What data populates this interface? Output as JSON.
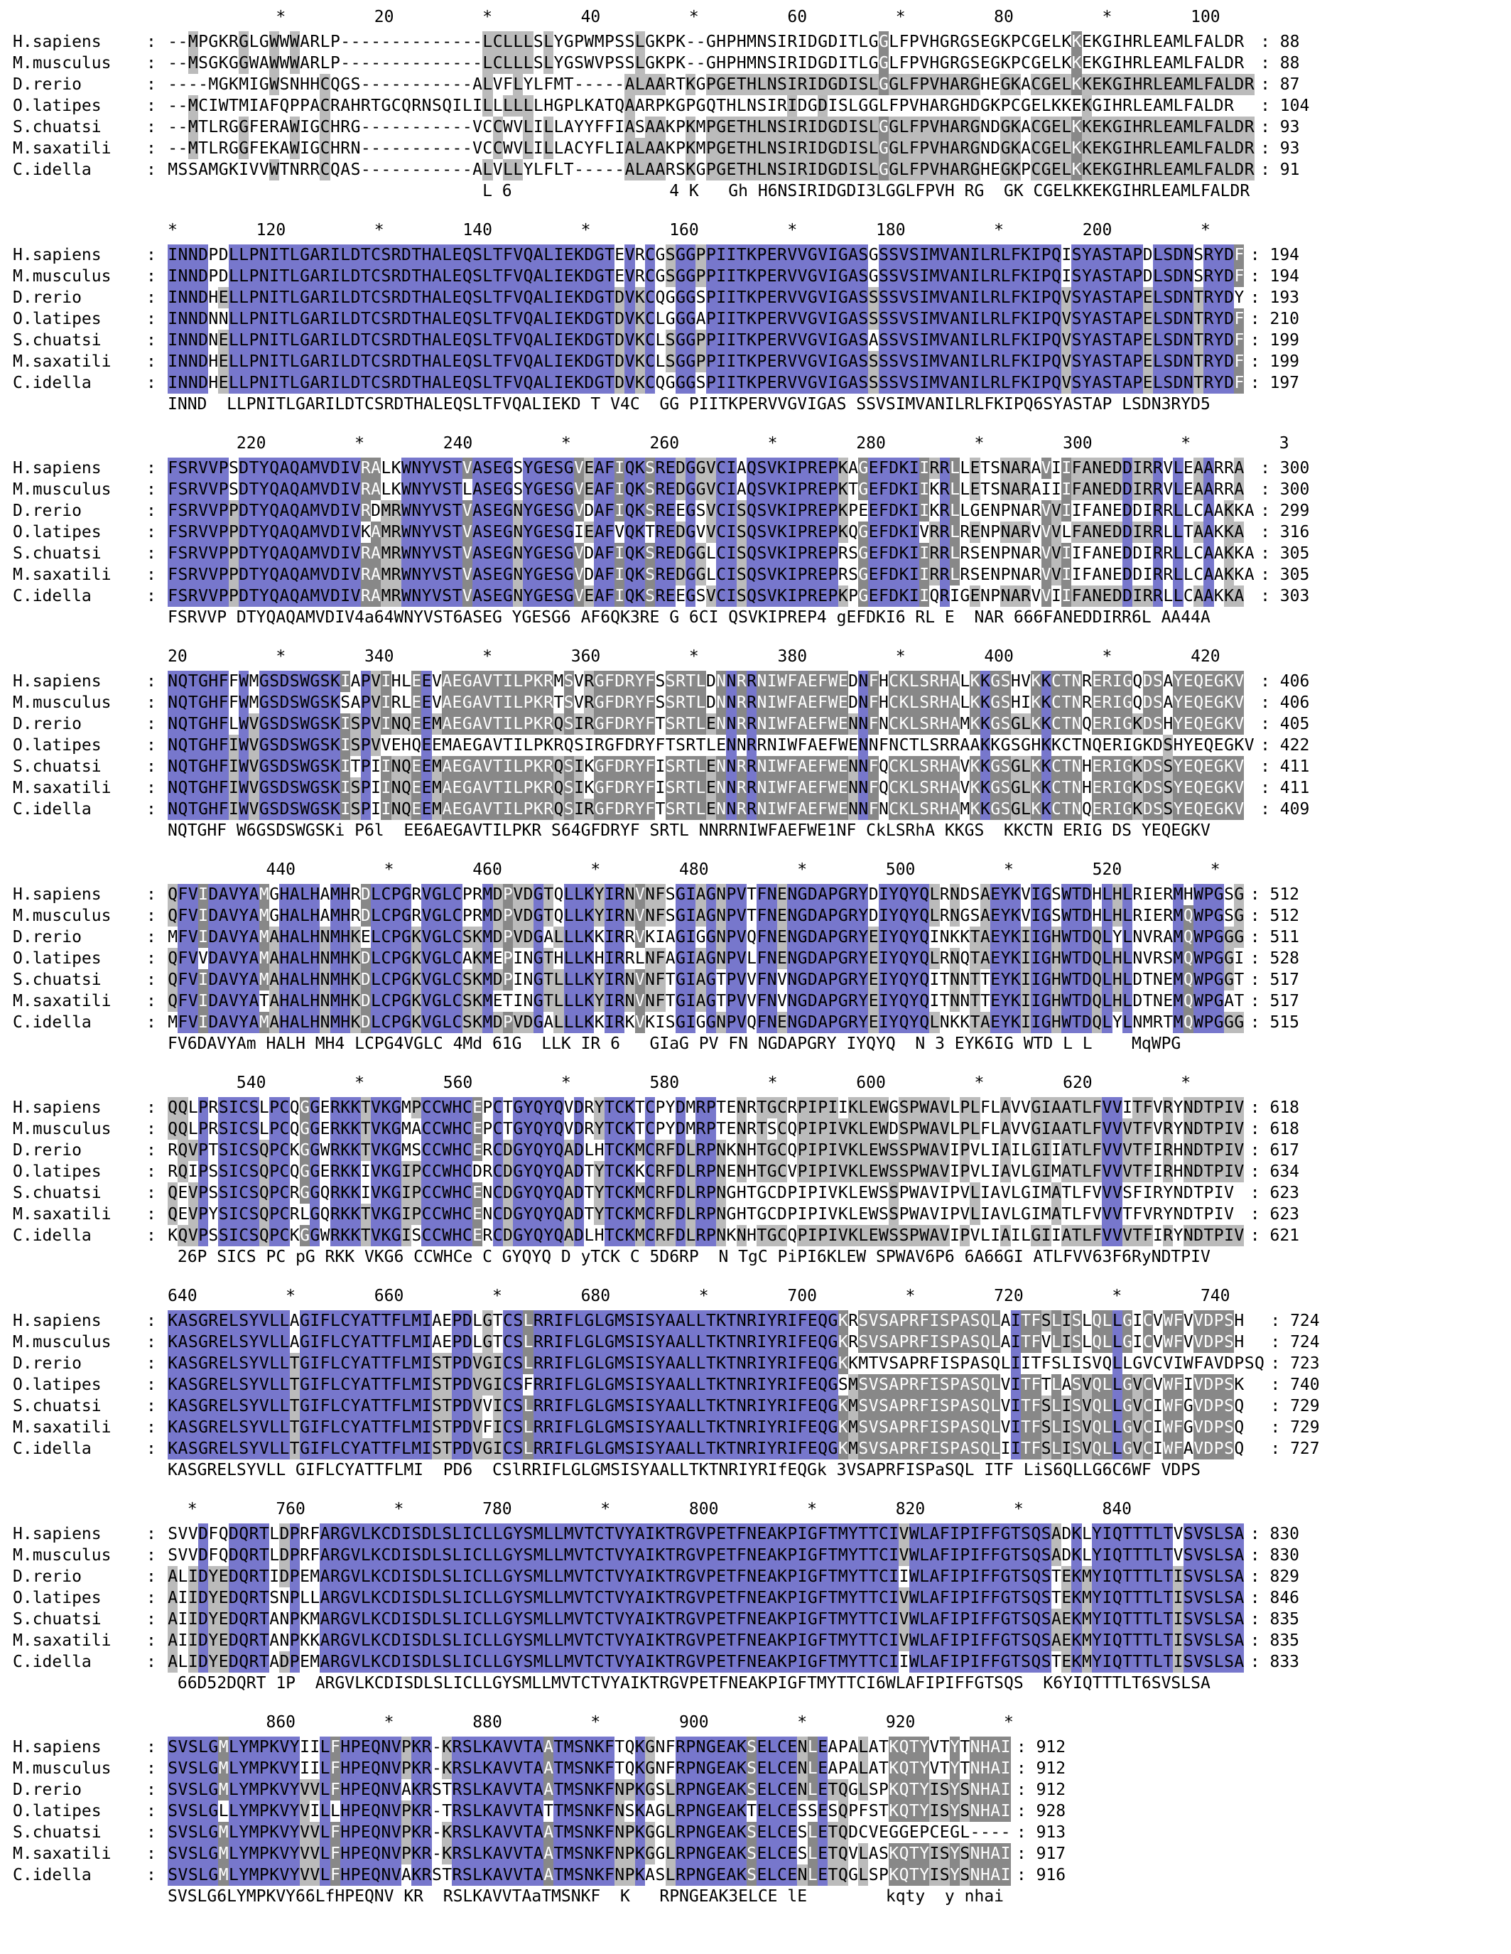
{
  "alignment": {
    "species": [
      "H.sapiens",
      "M.musculus",
      "D.rerio",
      "O.latipes",
      "S.chuatsi",
      "M.saxatili",
      "C.idella"
    ],
    "palette": {
      "identical": "#7777cc",
      "high": "#888888",
      "medium": "#bbbbbb"
    },
    "blocks": [
      {
        "ruler": "           *         20         *         40         *         60         *         80         *        100",
        "rows": [
          {
            "name": "H.sapiens",
            "seq": "--MPGKRGLGWWWARLP--------------LCLLLSLYGPWMPSSLGKPK--GHPHMNSIRIDGDITLGGLFPVHGRGSEGKPCGELKKEKGIHRLEAMLFALDR",
            "end": "88"
          },
          {
            "name": "M.musculus",
            "seq": "--MSGKGGWAWWWARLP--------------LCLLLSLYGSWVPSSLGKPK--GHPHMNSIRIDGDITLGGLFPVHGRGSEGKPCGELKKEKGIHRLEAMLFALDR",
            "end": "88"
          },
          {
            "name": "D.rerio",
            "seq": "----MGKMIGWSNHHCQGS-----------ALVFLYLFMT-----ALAARTKGPGETHLNSIRIDGDISLGGLFPVHARGHEGKACGELKKEKGIHRLEAMLFALDR",
            "end": "87"
          },
          {
            "name": "O.latipes",
            "seq": "--MCIWTMIAFQPPACRAHRTGCQRNSQILILLLLLLHGPLKATQAARPKGPGQTHLNSIRIDGDISLGGLFPVHARGHDGKPCGELKKEKGIHRLEAMLFALDR",
            "end": "104"
          },
          {
            "name": "S.chuatsi",
            "seq": "--MTLRGGFERAWIGCHRG-----------VCCWVLILLAYYFFIASAAKPKMPGETHLNSIRIDGDISLGGLFPVHARGNDGKACGELKKEKGIHRLEAMLFALDR",
            "end": "93"
          },
          {
            "name": "M.saxatili",
            "seq": "--MTLRGGFEKAWIGCHRN-----------VCCWVLILLACYFLIALAAKPKMPGETHLNSIRIDGDISLGGLFPVHARGNDGKACGELKKEKGIHRLEAMLFALDR",
            "end": "93"
          },
          {
            "name": "C.idella",
            "seq": "MSSAMGKIVVWTNRRCQAS-----------ALVLLYLFLT-----ALAARSKGPGETHLNSIRIDGDISLGGLFPVHARGHEGKPCGELKKEKGIHRLEAMLFALDR",
            "end": "91"
          }
        ],
        "consensus": "                                L 6                4 K   Gh H6NSIRIDGDI3LGGLFPVH RG  GK CGELKKEKGIHRLEAMLFALDR"
      },
      {
        "ruler": "*        120         *        140         *        160         *        180         *        200         *",
        "rows": [
          {
            "name": "H.sapiens",
            "seq": "INNDPDLLPNITLGARILDTCSRDTHALEQSLTFVQALIEKDGTEVRCGSGGPPIITKPERVVGVIGASGSSVSIMVANILRLFKIPQISYASTAPDLSDNSRYDF",
            "end": "194"
          },
          {
            "name": "M.musculus",
            "seq": "INNDPDLLPNITLGARILDTCSRDTHALEQSLTFVQALIEKDGTEVRCGSGGPPIITKPERVVGVIGASGSSVSIMVANILRLFKIPQISYASTAPDLSDNSRYDF",
            "end": "194"
          },
          {
            "name": "D.rerio",
            "seq": "INNDHELLPNITLGARILDTCSRDTHALEQSLTFVQALIEKDGTDVKCQGGGSPIITKPERVVGVIGASSSSVSIMVANILRLFKIPQVSYASTAPELSDNTRYDY",
            "end": "193"
          },
          {
            "name": "O.latipes",
            "seq": "INNDNNLLPNITLGARILDTCSRDTHALEQSLTFVQALIEKDGTDVKCLGGGAPIITKPERVVGVIGASSSSVSIMVANILRLFKIPQVSYASTAPELSDNTRYDF",
            "end": "210"
          },
          {
            "name": "S.chuatsi",
            "seq": "INNDNELLPNITLGARILDTCSRDTHALEQSLTFVQALIEKDGTDVKCLSGGPPIITKPERVVGVIGASASSVSIMVANILRLFKIPQVSYASTAPELSDNTRYDF",
            "end": "199"
          },
          {
            "name": "M.saxatili",
            "seq": "INNDHELLPNITLGARILDTCSRDTHALEQSLTFVQALIEKDGTDVKCLSGGPPIITKPERVVGVIGASSSSVSIMVANILRLFKIPQVSYASTAPELSDNTRYDF",
            "end": "199"
          },
          {
            "name": "C.idella",
            "seq": "INNDHELLPNITLGARILDTCSRDTHALEQSLTFVQALIEKDGTDVKCQGGGSPIITKPERVVGVIGASSSSVSIMVANILRLFKIPQVSYASTAPELSDNTRYDF",
            "end": "197"
          }
        ],
        "consensus": "INND  LLPNITLGARILDTCSRDTHALEQSLTFVQALIEKD T V4C  GG PIITKPERVVGVIGAS SSVSIMVANILRLFKIPQ6SYASTAP LSDN3RYD5"
      },
      {
        "ruler": "       220         *        240         *        260         *        280         *        300         *         3",
        "rows": [
          {
            "name": "H.sapiens",
            "seq": "FSRVVPSDTYQAQAMVDIVRALKWNYVSTVASEGSYGESGVEAFIQKSREDGGVCIAQSVKIPREPKAGEFDKIIRRLLETSNARAVIIFANEDDIRRVLEAARRA",
            "end": "300"
          },
          {
            "name": "M.musculus",
            "seq": "FSRVVPSDTYQAQAMVDIVRALKWNYVSTLASEGSYGESGVEAFIQKSREDGGVCIAQSVKIPREPKTGEFDKIIKRLLETSNARAIIIFANEDDIRRVLEAARRA",
            "end": "300"
          },
          {
            "name": "D.rerio",
            "seq": "FSRVVPPDTYQAQAMVDIVRDMRWNYVSTVASEGNYGESGVDAFIQKSREEGSVCISQSVKIPREPKPEEFDKIIKRLLGENPNARVVIIFANEDDIRRLLCAAKKA",
            "end": "299"
          },
          {
            "name": "O.latipes",
            "seq": "FSRVVPPDTYQAQAMVDIVKAMRWNYVSTVASEGNYGESGIEAFVQKTREDGVVCISQSVKIPREPKQGEFDKIVRRLRENPNARVVVLFANEDDIRRLLTAAKKA",
            "end": "316"
          },
          {
            "name": "S.chuatsi",
            "seq": "FSRVVPPDTYQAQAMVDIVRAMRWNYVSTVASEGNYGESGVDAFIQKSREDGGLCISQSVKIPREPRSGEFDKIIRRLRSENPNARVVIIFANEDDIRRLLCAAKKA",
            "end": "305"
          },
          {
            "name": "M.saxatili",
            "seq": "FSRVVPPDTYQAQAMVDIVRAMRWNYVSTVASEGNYGESGVDAFIQKSREDGGLCISQSVKIPREPRSGEFDKIIRRLRSENPNARVVIIFANEDDIRRLLCAAKKA",
            "end": "305"
          },
          {
            "name": "C.idella",
            "seq": "FSRVVPPDTYQAQAMVDIVRAMRWNYVSTVASEGNYGESGVEAFIQKSREEGSVCISQSVKIPREPKPGEFDKIIQRIGENPNARVVIIFANEDDIRRLLCAAKKA",
            "end": "303"
          }
        ],
        "consensus": "FSRVVP DTYQAQAMVDIV4a64WNYVST6ASEG YGESG6 AF6QK3RE G 6CI QSVKIPREP4 gEFDKI6 RL E  NAR 666FANEDDIRR6L AA44A"
      },
      {
        "ruler": "20         *        340         *        360         *        380         *        400         *        420",
        "rows": [
          {
            "name": "H.sapiens",
            "seq": "NQTGHFFWMGSDSWGSKIAPVIHLEEVAEGAVTILPKRMSVRGFDRYFSSRTLDNNRRNIWFAEFWEDNFHCKLSRHALKKGSHVKKCTNRERIGQDSAYEQEGKV",
            "end": "406"
          },
          {
            "name": "M.musculus",
            "seq": "NQTGHFFWMGSDSWGSKSAPVIRLEEVAEGAVTILPKRTSVRGFDRYFSSRTLDNNRRNIWFAEFWEDNFHCKLSRHALKKGSHIKKCTNRERIGQDSAYEQEGKV",
            "end": "406"
          },
          {
            "name": "D.rerio",
            "seq": "NQTGHFLWVGSDSWGSKISPVINQEEMAEGAVTILPKRQSIRGFDRYFTSRTLENNRRNIWFAEFWENNFNCKLSRHAMKKGSGLKKCTNQERIGKDSHYEQEGKV",
            "end": "405"
          },
          {
            "name": "O.latipes",
            "seq": "NQTGHFIWVGSDSWGSKISPVVEHQEEMAEGAVTILPKRQSIRGFDRYFTSRTLENNRRNIWFAEFWENNFNCTLSRRAAKKGSGHKKCTNQERIGKDSHYEQEGKV",
            "end": "422"
          },
          {
            "name": "S.chuatsi",
            "seq": "NQTGHFIWVGSDSWGSKITPIINQEEMAEGAVTILPKRQSIKGFDRYFISRTLENNRRNIWFAEFWENNFQCKLSRHAVKKGSGLKKCTNHERIGKDSSYEQEGKV",
            "end": "411"
          },
          {
            "name": "M.saxatili",
            "seq": "NQTGHFIWVGSDSWGSKISPIINQEEMAEGAVTILPKRQSIKGFDRYFISRTLENNRRNIWFAEFWENNFQCKLSRHAVKKGSGLKKCTNHERIGKDSSYEQEGKV",
            "end": "411"
          },
          {
            "name": "C.idella",
            "seq": "NQTGHFIWVGSDSWGSKISPIINQEEMAEGAVTILPKRQSIRGFDRYFTSRTLENNRRNIWFAEFWENNFNCKLSRHAMKKGSGLKKCTNQERIGKDSSYEQEGKV",
            "end": "409"
          }
        ],
        "consensus": "NQTGHF W6GSDSWGSKi P6l  EE6AEGAVTILPKR S64GFDRYF SRTL NNRRNIWFAEFWE1NF CkLSRhA KKGS  KKCTN ERIG DS YEQEGKV"
      },
      {
        "ruler": "          440         *        460         *        480         *        500         *        520         *",
        "rows": [
          {
            "name": "H.sapiens",
            "seq": "QFVIDAVYAMGHALHAMHRDLCPGRVGLCPRMDPVDGTQLLKYIRNVNFSGIAGNPVTFNENGDAPGRYDIYQYQLRNDSAEYKVIGSWTDHLHLRIERMHWPGSG",
            "end": "512"
          },
          {
            "name": "M.musculus",
            "seq": "QFVIDAVYAMGHALHAMHRDLCPGRVGLCPRMDPVDGTQLLKYIRNVNFSGIAGNPVTFNENGDAPGRYDIYQYQLRNGSAEYKVIGSWTDHLHLRIERMQWPGSG",
            "end": "512"
          },
          {
            "name": "D.rerio",
            "seq": "MFVIDAVYAMAHALHNMHKELCPGKVGLCSKMDPVDGALLLKKIRRVKIAGIGGNPVQFNENGDAPGRYEIYQYQINKKTAEYKIIGHWTDQLYLNVRAMQWPGGG",
            "end": "511"
          },
          {
            "name": "O.latipes",
            "seq": "QFVVDAVYAMAHALHNMHKDLCPGKVGLCAKMEPINGTHLLKHIRRLNFAGIAGNPVLFNENGDAPGRYEIYQYQLRNQTAEYKIIGHWTDQLHLNVRSMQWPGGI",
            "end": "528"
          },
          {
            "name": "S.chuatsi",
            "seq": "QFVIDAVYAMAHALHNMHKDLCPGKVGLCSKMDPINGTLLLKYIRNVNFTGIAGTPVVFNVNGDAPGRYEIYQYQITNNTTEYKIIGHWTDQLHLDTNEMQWPGGT",
            "end": "517"
          },
          {
            "name": "M.saxatili",
            "seq": "QFVIDAVYATAHALHNMHKDLCPGKVGLCSKMETINGTLLLKYIRNVNFTGIAGTPVVFNVNGDAPGRYEIYQYQITNNTTEYKIIGHWTDQLHLDTNEMQWPGAT",
            "end": "517"
          },
          {
            "name": "C.idella",
            "seq": "MFVIDAVYAMAHALHNMHKDLCPGKVGLCSKMDPVDGALLLKKIRKVKISGIGGNPVQFNENGDAPGRYEIYQYQLNKKTAEYKIIGHWTDQLYLNMRTMQWPGGG",
            "end": "515"
          }
        ],
        "consensus": "FV6DAVYAm HALH MH4 LCPG4VGLC 4Md 61G  LLK IR 6   GIaG PV FN NGDAPGRY IYQYQ  N 3 EYK6IG WTD L L    MqWPG"
      },
      {
        "ruler": "       540         *        560         *        580         *        600         *        620         *",
        "rows": [
          {
            "name": "H.sapiens",
            "seq": "QQLPRSICSLPCQGGERKKTVKGMPCCWHCEPCTGYQYQVDRYTCKTCPYDMRPTENRTGCRPIPIIKLEWGSPWAVLPLFLAVVGIAATLFVVITFVRYNDTPIV",
            "end": "618"
          },
          {
            "name": "M.musculus",
            "seq": "QQLPRSICSLPCQGGERKKTVKGMACCWHCEPCTGYQYQVDRYTCKTCPYDMRPTENRTSCQPIPIVKLEWDSPWAVLPLFLAVVGIAATLFVVVTFVRYNDTPIV",
            "end": "618"
          },
          {
            "name": "D.rerio",
            "seq": "RQVPTSICSQPCKGGWRKKTVKGMSCCWHCERCDGYQYQADLHTCKMCRFDLRPNKNHTGCQPIPIVKLEWSSPWAVIPVLIAILGIIATLFVVVTFIRHNDTPIV",
            "end": "617"
          },
          {
            "name": "O.latipes",
            "seq": "RQIPSSICSQPCQGGERKKIVKGIPCCWHCDRCDGYQYQADTYTCKKCRFDLRPNENHTGCVPIPIVKLEWSSPWAVIPVLIAVLGIMATLFVVVTFIRHNDTPIV",
            "end": "634"
          },
          {
            "name": "S.chuatsi",
            "seq": "QEVPSSICSQPCRGGQRKKIVKGIPCCWHCENCDGYQYQADTYTCKMCRFDLRPNGHTGCDPIPIVKLEWSSPWAVIPVLIAVLGIMATLFVVVSFIRYNDTPIV",
            "end": "623"
          },
          {
            "name": "M.saxatili",
            "seq": "QEVPYSICSQPCRLGQRKKTVKGIPCCWHCENCDGYQYQADTYTCKMCRFDLRPNGHTGCDPIPIVKLEWSSPWAVIPVLIAVLGIMATLFVVVTFVRYNDTPIV",
            "end": "623"
          },
          {
            "name": "C.idella",
            "seq": "KQVPSSICSQPCKGGWRKKTVKGISCCWHCERCDGYQYQADLHTCKMCRFDLRPNKNHTGCQPIPIVKLEWSSPWAVIPVLIAILGIIATLFVVVTFIRYNDTPIV",
            "end": "621"
          }
        ],
        "consensus": " 26P SICS PC pG RKK VKG6 CCWHCe C GYQYQ D yTCK C 5D6RP  N TgC PiPI6KLEW SPWAV6P6 6A66GI ATLFVV63F6RyNDTPIV"
      },
      {
        "ruler": "640         *        660         *        680         *        700         *        720         *        740",
        "rows": [
          {
            "name": "H.sapiens",
            "seq": "KASGRELSYVLLAGIFLCYATTFLMIAEPDLGTCSLRRIFLGLGMSISYAALLTKTNRIYRIFEQGKRSVSAPRFISPASQLAITFSLISLQLLGICVWFVVDPSH",
            "end": "724"
          },
          {
            "name": "M.musculus",
            "seq": "KASGRELSYVLLAGIFLCYATTFLMIAEPDLGTCSLRRIFLGLGMSISYAALLTKTNRIYRIFEQGKRSVSAPRFISPASQLAITFVLISLQLLGICVWFVVDPSH",
            "end": "724"
          },
          {
            "name": "D.rerio",
            "seq": "KASGRELSYVLLTGIFLCYATTFLMISTPDVGICSLRRIFLGLGMSISYAALLTKTNRIYRIFEQGKKMTVSAPRFISPASQLIITFSLISVQLLGVCVIWFAVDPSQ",
            "end": "723"
          },
          {
            "name": "O.latipes",
            "seq": "KASGRELSYVLLTGIFLCYATTFLMISTPDVGICSFRRIFLGLGMSISYAALLTKTNRIYRIFEQGSMSVSAPRFISPASQLVITFTLASVQLLGVCVWFIVDPSK",
            "end": "740"
          },
          {
            "name": "S.chuatsi",
            "seq": "KASGRELSYVLLTGIFLCYATTFLMISTPDVVICSLRRIFLGLGMSISYAALLTKTNRIYRIFEQGKMSVSAPRFISPASQLVITFSLISVQLLGVCIWFGVDPSQ",
            "end": "729"
          },
          {
            "name": "M.saxatili",
            "seq": "KASGRELSYVLLTGIFLCYATTFLMISTPDVFICSLRRIFLGLGMSISYAALLTKTNRIYRIFEQGKMSVSAPRFISPASQLVITFSLISVQLLGVCIWFGVDPSQ",
            "end": "729"
          },
          {
            "name": "C.idella",
            "seq": "KASGRELSYVLLTGIFLCYATTFLMISTPDVGICSLRRIFLGLGMSISYAALLTKTNRIYRIFEQGKMSVSAPRFISPASQLIITFSLISVQLLGVCIWFAVDPSQ",
            "end": "727"
          }
        ],
        "consensus": "KASGRELSYVLL GIFLCYATTFLMI  PD6  CSlRRIFLGLGMSISYAALLTKTNRIYRIfEQGk 3VSAPRFISPaSQL ITF LiS6QLLG6C6WF VDPS"
      },
      {
        "ruler": "  *        760         *        780         *        800         *        820         *        840",
        "rows": [
          {
            "name": "H.sapiens",
            "seq": "SVVDFQDQRTLDPRFARGVLKCDISDLSLICLLGYSMLLMVTCTVYAIKTRGVPETFNEAKPIGFTMYTTCIVWLAFIPIFFGTSQSADKLYIQTTTLTVSVSLSA",
            "end": "830"
          },
          {
            "name": "M.musculus",
            "seq": "SVVDFQDQRTLDPRFARGVLKCDISDLSLICLLGYSMLLMVTCTVYAIKTRGVPETFNEAKPIGFTMYTTCIVWLAFIPIFFGTSQSADKLYIQTTTLTVSVSLSA",
            "end": "830"
          },
          {
            "name": "D.rerio",
            "seq": "ALIDYEDQRTIDPEMARGVLKCDISDLSLICLLGYSMLLMVTCTVYAIKTRGVPETFNEAKPIGFTMYTTCIIWLAFIPIFFGTSQSTEKMYIQTTTLTISVSLSA",
            "end": "829"
          },
          {
            "name": "O.latipes",
            "seq": "AIIDYEDQRTSNPLLARGVLKCDISDLSLICLLGYSMLLMVTCTVYAIKTRGVPETFNEAKPIGFTMYTTCIVWLAFIPIFFGTSQSTEKMYIQTTTLTISVSLSA",
            "end": "846"
          },
          {
            "name": "S.chuatsi",
            "seq": "AIIDYEDQRTANPKMARGVLKCDISDLSLICLLGYSMLLMVTCTVYAIKTRGVPETFNEAKPIGFTMYTTCIVWLAFIPIFFGTSQSAEKMYIQTTTLTISVSLSA",
            "end": "835"
          },
          {
            "name": "M.saxatili",
            "seq": "AIIDYEDQRTANPKKARGVLKCDISDLSLICLLGYSMLLMVTCTVYAIKTRGVPETFNEAKPIGFTMYTTCIVWLAFIPIFFGTSQSAEKMYIQTTTLTISVSLSA",
            "end": "835"
          },
          {
            "name": "C.idella",
            "seq": "ALIDYEDQRTADPEMARGVLKCDISDLSLICLLGYSMLLMVTCTVYAIKTRGVPETFNEAKPIGFTMYTTCIIWLAFIPIFFGTSQSTEKMYIQTTTLTISVSLSA",
            "end": "833"
          }
        ],
        "consensus": " 66D52DQRT 1P  ARGVLKCDISDLSLICLLGYSMLLMVTCTVYAIKTRGVPETFNEAKPIGFTMYTTCI6WLAFIPIFFGTSQS  K6YIQTTTLT6SVSLSA"
      },
      {
        "ruler": "          860         *        880         *        900         *        920         *",
        "rows": [
          {
            "name": "H.sapiens",
            "seq": "SVSLGMLYMPKVYIILFHPEQNVPKR-KRSLKAVVTAATMSNKFTQKGNFRPNGEAKSELCENLEAPALATKQTYVTYTNHAI",
            "end": "912"
          },
          {
            "name": "M.musculus",
            "seq": "SVSLGMLYMPKVYIILFHPEQNVPKR-KRSLKAVVTAATMSNKFTQKGNFRPNGEAKSELCENLEAPALATKQTYVTYTNHAI",
            "end": "912"
          },
          {
            "name": "D.rerio",
            "seq": "SVSLGMLYMPKVYVVLFHPEQNVAKRSTRSLKAVVTAATMSNKFNPKGSLRPNGEAKSELCENLETQGLSPKQTYISYSNHAI",
            "end": "912"
          },
          {
            "name": "O.latipes",
            "seq": "SVSLGLLYMPKVYVILLHPEQNVPKR-TRSLKAVVTATTMSNKFNSKAGLRPNGEAKTELCESSESQPFSTKQTYISYSNHAI",
            "end": "928"
          },
          {
            "name": "S.chuatsi",
            "seq": "SVSLGMLYMPKVYVVLFHPEQNVPKR-KRSLKAVVTAATMSNKFNPKGGLRPNGEAKSELCESLETQDCVEGGEPCEGL----",
            "end": "913"
          },
          {
            "name": "M.saxatili",
            "seq": "SVSLGMLYMPKVYVVLFHPEQNVPKR-KRSLKAVVTAATMSNKFNPKGGLRPNGEAKSELCESLETQVLASKQTYISYSNHAI",
            "end": "917"
          },
          {
            "name": "C.idella",
            "seq": "SVSLGMLYMPKVYVVLFHPEQNVAKRSTRSLKAVVTAATMSNKFNPKASLRPNGEAKSELCENLETQGLSPKQTYISYSNHAI",
            "end": "916"
          }
        ],
        "consensus": "SVSLG6LYMPKVY66LfHPEQNV KR  RSLKAVVTAaTMSNKF  K   RPNGEAK3ELCE lE        kqty  y nhai"
      }
    ]
  }
}
